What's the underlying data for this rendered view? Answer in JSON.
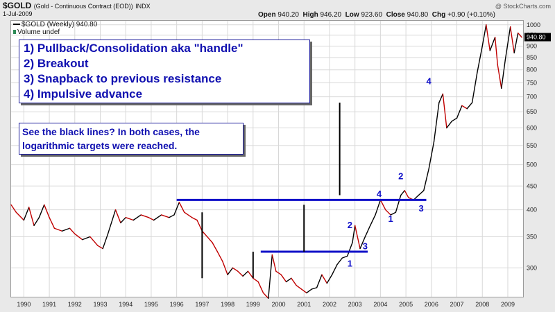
{
  "header": {
    "symbol": "$GOLD",
    "description": "(Gold - Continuous Contract (EOD))",
    "exchange": "INDX",
    "date": "1-Jul-2009",
    "watermark": "@ StockCharts.com",
    "open_label": "Open",
    "open": "940.20",
    "high_label": "High",
    "high": "946.20",
    "low_label": "Low",
    "low": "923.60",
    "close_label": "Close",
    "close": "940.80",
    "chg_label": "Chg",
    "chg": "+0.90 (+0.10%)"
  },
  "legend": {
    "series": "$GOLD (Weekly) 940.80",
    "volume": "Volume undef"
  },
  "notes": {
    "steps": [
      "1) Pullback/Consolidation aka \"handle\"",
      "2) Breakout",
      "3) Snapback to previous resistance",
      "4) Impulsive advance"
    ],
    "log_targets": "See the black lines? In both cases, the logarithmic targets were reached."
  },
  "colors": {
    "series": "#000000",
    "down_segment": "#c00000",
    "annotation": "#1010c8",
    "resistance": "#1010c8",
    "target_lines": "#000000",
    "plot_bg": "#ffffff",
    "grid": "#d8d8d8"
  },
  "chart_data": {
    "type": "line",
    "scale": "log",
    "x_unit": "year",
    "xlim": [
      1989.5,
      2009.6
    ],
    "ylim": [
      260,
      1020
    ],
    "x_ticks": [
      "1990",
      "1991",
      "1992",
      "1993",
      "1994",
      "1995",
      "1996",
      "1997",
      "1998",
      "1999",
      "2000",
      "2001",
      "2002",
      "2003",
      "2004",
      "2005",
      "2006",
      "2007",
      "2008",
      "2009"
    ],
    "y_ticks": [
      1000,
      950,
      900,
      850,
      800,
      750,
      700,
      650,
      600,
      550,
      500,
      450,
      400,
      350,
      300
    ],
    "last_value": 940.8,
    "series": [
      {
        "points": [
          [
            1989.5,
            410
          ],
          [
            1989.7,
            395
          ],
          [
            1990.0,
            380
          ],
          [
            1990.2,
            405
          ],
          [
            1990.4,
            370
          ],
          [
            1990.6,
            385
          ],
          [
            1990.8,
            410
          ],
          [
            1991.0,
            385
          ],
          [
            1991.2,
            365
          ],
          [
            1991.5,
            360
          ],
          [
            1991.8,
            365
          ],
          [
            1992.0,
            355
          ],
          [
            1992.3,
            345
          ],
          [
            1992.6,
            350
          ],
          [
            1992.9,
            335
          ],
          [
            1993.1,
            330
          ],
          [
            1993.3,
            355
          ],
          [
            1993.6,
            400
          ],
          [
            1993.8,
            375
          ],
          [
            1994.0,
            385
          ],
          [
            1994.3,
            380
          ],
          [
            1994.6,
            390
          ],
          [
            1994.9,
            385
          ],
          [
            1995.1,
            380
          ],
          [
            1995.4,
            390
          ],
          [
            1995.7,
            385
          ],
          [
            1995.9,
            390
          ],
          [
            1996.1,
            415
          ],
          [
            1996.3,
            395
          ],
          [
            1996.6,
            385
          ],
          [
            1996.8,
            380
          ],
          [
            1997.0,
            360
          ],
          [
            1997.2,
            350
          ],
          [
            1997.4,
            340
          ],
          [
            1997.6,
            325
          ],
          [
            1997.8,
            310
          ],
          [
            1998.0,
            290
          ],
          [
            1998.2,
            300
          ],
          [
            1998.4,
            295
          ],
          [
            1998.6,
            288
          ],
          [
            1998.8,
            295
          ],
          [
            1999.0,
            285
          ],
          [
            1999.2,
            280
          ],
          [
            1999.4,
            265
          ],
          [
            1999.6,
            258
          ],
          [
            1999.75,
            320
          ],
          [
            1999.9,
            295
          ],
          [
            2000.1,
            290
          ],
          [
            2000.3,
            280
          ],
          [
            2000.5,
            285
          ],
          [
            2000.7,
            275
          ],
          [
            2000.9,
            270
          ],
          [
            2001.1,
            265
          ],
          [
            2001.3,
            270
          ],
          [
            2001.5,
            272
          ],
          [
            2001.7,
            290
          ],
          [
            2001.9,
            278
          ],
          [
            2002.1,
            290
          ],
          [
            2002.3,
            305
          ],
          [
            2002.5,
            315
          ],
          [
            2002.7,
            318
          ],
          [
            2002.9,
            340
          ],
          [
            2003.0,
            370
          ],
          [
            2003.2,
            330
          ],
          [
            2003.4,
            350
          ],
          [
            2003.6,
            370
          ],
          [
            2003.8,
            390
          ],
          [
            2004.0,
            420
          ],
          [
            2004.2,
            400
          ],
          [
            2004.4,
            390
          ],
          [
            2004.6,
            395
          ],
          [
            2004.8,
            430
          ],
          [
            2004.95,
            440
          ],
          [
            2005.1,
            425
          ],
          [
            2005.3,
            420
          ],
          [
            2005.5,
            430
          ],
          [
            2005.7,
            440
          ],
          [
            2005.9,
            490
          ],
          [
            2006.1,
            560
          ],
          [
            2006.3,
            680
          ],
          [
            2006.45,
            710
          ],
          [
            2006.6,
            600
          ],
          [
            2006.8,
            620
          ],
          [
            2007.0,
            630
          ],
          [
            2007.2,
            670
          ],
          [
            2007.4,
            660
          ],
          [
            2007.6,
            680
          ],
          [
            2007.8,
            790
          ],
          [
            2008.0,
            900
          ],
          [
            2008.15,
            1000
          ],
          [
            2008.3,
            880
          ],
          [
            2008.5,
            940
          ],
          [
            2008.6,
            820
          ],
          [
            2008.75,
            730
          ],
          [
            2008.9,
            840
          ],
          [
            2009.1,
            990
          ],
          [
            2009.25,
            870
          ],
          [
            2009.4,
            960
          ],
          [
            2009.55,
            940
          ]
        ]
      }
    ],
    "resistance_lines": [
      {
        "x": [
          1996.0,
          2005.8
        ],
        "y": 420
      },
      {
        "x": [
          1999.3,
          2003.5
        ],
        "y": 325
      }
    ],
    "target_lines": [
      {
        "x": 1997.0,
        "y": [
          285,
          395
        ]
      },
      {
        "x": 1999.0,
        "y": [
          285,
          325
        ]
      },
      {
        "x": 2001.0,
        "y": [
          325,
          410
        ]
      },
      {
        "x": 2002.4,
        "y": [
          430,
          680
        ]
      }
    ],
    "annotations": [
      {
        "text": "1",
        "x": 2002.8,
        "y": 302
      },
      {
        "text": "2",
        "x": 2002.8,
        "y": 365
      },
      {
        "text": "3",
        "x": 2003.4,
        "y": 329
      },
      {
        "text": "4",
        "x": 2003.95,
        "y": 426
      },
      {
        "text": "1",
        "x": 2004.4,
        "y": 377
      },
      {
        "text": "2",
        "x": 2004.8,
        "y": 465
      },
      {
        "text": "3",
        "x": 2005.6,
        "y": 397
      },
      {
        "text": "4",
        "x": 2005.9,
        "y": 745
      }
    ]
  }
}
